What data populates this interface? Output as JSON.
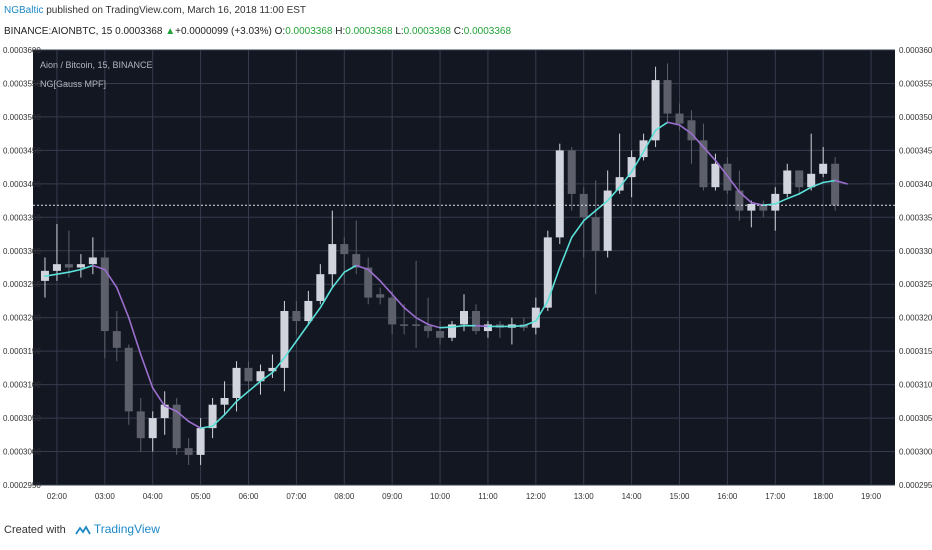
{
  "header": {
    "author": "NGBaltic",
    "published": " published on TradingView.com, March 16, 2018 11:00 EST",
    "symbol": "BINANCE:AIONBTC, 15",
    "last": "0.0003368",
    "change": "+0.0000099 (+3.03%)",
    "o_label": "O:",
    "o_value": "0.0003368",
    "h_label": "H:",
    "h_value": "0.0003368",
    "l_label": "L:",
    "l_value": "0.0003368",
    "c_label": "C:",
    "c_value": "0.0003368"
  },
  "legend": {
    "main": "Aion / Bitcoin, 15, BINANCE",
    "indicator": "NG[Gauss MPF]"
  },
  "footer": {
    "created_with": "Created with",
    "brand": "TradingView"
  },
  "colors": {
    "background": "#131722",
    "grid": "#363c4e",
    "axis_text": "#b2b5be",
    "bull_candle": "#d1d4dc",
    "bear_candle": "#5d606b",
    "ma_up": "#5ae0d8",
    "ma_down": "#9c6fcf",
    "current_price_line": "#e0e3eb"
  },
  "chart_data": {
    "type": "candlestick",
    "title": "Aion / Bitcoin, 15, BINANCE",
    "y_range": [
      0.000295,
      0.00036
    ],
    "y_ticks": [
      "0.0002950",
      "0.0003000",
      "0.0003050",
      "0.0003100",
      "0.0003150",
      "0.0003200",
      "0.0003250",
      "0.0003300",
      "0.0003350",
      "0.0003400",
      "0.0003450",
      "0.0003500",
      "0.0003550",
      "0.0003600"
    ],
    "x_ticks": [
      "02:00",
      "03:00",
      "04:00",
      "05:00",
      "06:00",
      "07:00",
      "08:00",
      "09:00",
      "10:00",
      "11:00",
      "12:00",
      "13:00",
      "14:00",
      "15:00",
      "16:00",
      "17:00",
      "18:00",
      "19:00"
    ],
    "current_price": 0.0003368,
    "candles": [
      {
        "t": 1.75,
        "o": 0.0003255,
        "h": 0.000329,
        "l": 0.000323,
        "c": 0.000327
      },
      {
        "t": 2.0,
        "o": 0.000327,
        "h": 0.000334,
        "l": 0.0003255,
        "c": 0.000328
      },
      {
        "t": 2.25,
        "o": 0.000328,
        "h": 0.000333,
        "l": 0.000326,
        "c": 0.0003275
      },
      {
        "t": 2.5,
        "o": 0.0003275,
        "h": 0.0003295,
        "l": 0.000326,
        "c": 0.000328
      },
      {
        "t": 2.75,
        "o": 0.000328,
        "h": 0.000332,
        "l": 0.0003265,
        "c": 0.000329
      },
      {
        "t": 3.0,
        "o": 0.000329,
        "h": 0.00033,
        "l": 0.000314,
        "c": 0.000318
      },
      {
        "t": 3.25,
        "o": 0.000318,
        "h": 0.000321,
        "l": 0.0003135,
        "c": 0.0003155
      },
      {
        "t": 3.5,
        "o": 0.0003155,
        "h": 0.000316,
        "l": 0.000304,
        "c": 0.000306
      },
      {
        "t": 3.75,
        "o": 0.000306,
        "h": 0.000308,
        "l": 0.0003,
        "c": 0.000302
      },
      {
        "t": 4.0,
        "o": 0.000302,
        "h": 0.000306,
        "l": 0.0003,
        "c": 0.000305
      },
      {
        "t": 4.25,
        "o": 0.000305,
        "h": 0.000309,
        "l": 0.0003025,
        "c": 0.000307
      },
      {
        "t": 4.5,
        "o": 0.000307,
        "h": 0.000308,
        "l": 0.0002995,
        "c": 0.0003005
      },
      {
        "t": 4.75,
        "o": 0.0003005,
        "h": 0.000302,
        "l": 0.000298,
        "c": 0.0002995
      },
      {
        "t": 5.0,
        "o": 0.0002995,
        "h": 0.000305,
        "l": 0.000298,
        "c": 0.0003035
      },
      {
        "t": 5.25,
        "o": 0.0003035,
        "h": 0.000308,
        "l": 0.000302,
        "c": 0.000307
      },
      {
        "t": 5.5,
        "o": 0.000307,
        "h": 0.0003105,
        "l": 0.0003055,
        "c": 0.000308
      },
      {
        "t": 5.75,
        "o": 0.000308,
        "h": 0.0003135,
        "l": 0.000306,
        "c": 0.0003125
      },
      {
        "t": 6.0,
        "o": 0.0003125,
        "h": 0.0003135,
        "l": 0.000309,
        "c": 0.0003105
      },
      {
        "t": 6.25,
        "o": 0.0003105,
        "h": 0.000313,
        "l": 0.0003085,
        "c": 0.000312
      },
      {
        "t": 6.5,
        "o": 0.000312,
        "h": 0.0003145,
        "l": 0.000311,
        "c": 0.0003125
      },
      {
        "t": 6.75,
        "o": 0.0003125,
        "h": 0.0003225,
        "l": 0.000309,
        "c": 0.000321
      },
      {
        "t": 7.0,
        "o": 0.000321,
        "h": 0.0003225,
        "l": 0.0003175,
        "c": 0.0003195
      },
      {
        "t": 7.25,
        "o": 0.0003195,
        "h": 0.000324,
        "l": 0.000319,
        "c": 0.0003225
      },
      {
        "t": 7.5,
        "o": 0.0003225,
        "h": 0.000328,
        "l": 0.000322,
        "c": 0.0003265
      },
      {
        "t": 7.75,
        "o": 0.0003265,
        "h": 0.000336,
        "l": 0.0003245,
        "c": 0.000331
      },
      {
        "t": 8.0,
        "o": 0.000331,
        "h": 0.000332,
        "l": 0.000325,
        "c": 0.0003295
      },
      {
        "t": 8.25,
        "o": 0.0003295,
        "h": 0.0003345,
        "l": 0.0003265,
        "c": 0.0003275
      },
      {
        "t": 8.5,
        "o": 0.0003275,
        "h": 0.000329,
        "l": 0.000322,
        "c": 0.000323
      },
      {
        "t": 8.75,
        "o": 0.0003235,
        "h": 0.0003245,
        "l": 0.000322,
        "c": 0.000323
      },
      {
        "t": 9.0,
        "o": 0.000323,
        "h": 0.000324,
        "l": 0.0003175,
        "c": 0.000319
      },
      {
        "t": 9.25,
        "o": 0.000319,
        "h": 0.000322,
        "l": 0.0003175,
        "c": 0.0003188
      },
      {
        "t": 9.5,
        "o": 0.000319,
        "h": 0.0003285,
        "l": 0.0003155,
        "c": 0.0003188
      },
      {
        "t": 9.75,
        "o": 0.0003188,
        "h": 0.000323,
        "l": 0.000317,
        "c": 0.000318
      },
      {
        "t": 10.0,
        "o": 0.000318,
        "h": 0.0003195,
        "l": 0.000316,
        "c": 0.000317
      },
      {
        "t": 10.25,
        "o": 0.000317,
        "h": 0.0003195,
        "l": 0.0003165,
        "c": 0.000319
      },
      {
        "t": 10.5,
        "o": 0.000319,
        "h": 0.0003235,
        "l": 0.000318,
        "c": 0.000321
      },
      {
        "t": 10.75,
        "o": 0.000321,
        "h": 0.000322,
        "l": 0.0003175,
        "c": 0.000318
      },
      {
        "t": 11.0,
        "o": 0.000318,
        "h": 0.0003195,
        "l": 0.000317,
        "c": 0.000319
      },
      {
        "t": 11.25,
        "o": 0.000319,
        "h": 0.0003195,
        "l": 0.000317,
        "c": 0.0003185
      },
      {
        "t": 11.5,
        "o": 0.0003185,
        "h": 0.00032,
        "l": 0.000316,
        "c": 0.000319
      },
      {
        "t": 11.75,
        "o": 0.000319,
        "h": 0.00032,
        "l": 0.000318,
        "c": 0.0003185
      },
      {
        "t": 12.0,
        "o": 0.0003185,
        "h": 0.000323,
        "l": 0.0003175,
        "c": 0.0003215
      },
      {
        "t": 12.25,
        "o": 0.0003215,
        "h": 0.000333,
        "l": 0.000321,
        "c": 0.000332
      },
      {
        "t": 12.5,
        "o": 0.000332,
        "h": 0.000346,
        "l": 0.000331,
        "c": 0.000345
      },
      {
        "t": 12.75,
        "o": 0.000345,
        "h": 0.0003455,
        "l": 0.000336,
        "c": 0.0003385
      },
      {
        "t": 13.0,
        "o": 0.0003385,
        "h": 0.0003395,
        "l": 0.000329,
        "c": 0.000335
      },
      {
        "t": 13.25,
        "o": 0.000335,
        "h": 0.0003405,
        "l": 0.0003235,
        "c": 0.00033
      },
      {
        "t": 13.5,
        "o": 0.00033,
        "h": 0.000342,
        "l": 0.000329,
        "c": 0.000339
      },
      {
        "t": 13.75,
        "o": 0.000339,
        "h": 0.0003475,
        "l": 0.0003385,
        "c": 0.000341
      },
      {
        "t": 14.0,
        "o": 0.000341,
        "h": 0.000345,
        "l": 0.000338,
        "c": 0.000344
      },
      {
        "t": 14.25,
        "o": 0.000344,
        "h": 0.0003475,
        "l": 0.0003435,
        "c": 0.0003465
      },
      {
        "t": 14.5,
        "o": 0.0003465,
        "h": 0.0003575,
        "l": 0.0003455,
        "c": 0.0003555
      },
      {
        "t": 14.75,
        "o": 0.0003555,
        "h": 0.000358,
        "l": 0.000349,
        "c": 0.0003505
      },
      {
        "t": 15.0,
        "o": 0.0003505,
        "h": 0.000352,
        "l": 0.000348,
        "c": 0.000349
      },
      {
        "t": 15.25,
        "o": 0.0003495,
        "h": 0.000351,
        "l": 0.000343,
        "c": 0.0003465
      },
      {
        "t": 15.5,
        "o": 0.0003465,
        "h": 0.000349,
        "l": 0.000339,
        "c": 0.0003395
      },
      {
        "t": 15.75,
        "o": 0.0003395,
        "h": 0.0003445,
        "l": 0.000339,
        "c": 0.000343
      },
      {
        "t": 16.0,
        "o": 0.000343,
        "h": 0.000344,
        "l": 0.0003385,
        "c": 0.000339
      },
      {
        "t": 16.25,
        "o": 0.000339,
        "h": 0.000342,
        "l": 0.0003345,
        "c": 0.000336
      },
      {
        "t": 16.5,
        "o": 0.000336,
        "h": 0.0003375,
        "l": 0.0003335,
        "c": 0.000337
      },
      {
        "t": 16.75,
        "o": 0.000337,
        "h": 0.0003375,
        "l": 0.000335,
        "c": 0.000336
      },
      {
        "t": 17.0,
        "o": 0.000336,
        "h": 0.0003395,
        "l": 0.000333,
        "c": 0.0003385
      },
      {
        "t": 17.25,
        "o": 0.0003385,
        "h": 0.000343,
        "l": 0.000338,
        "c": 0.000342
      },
      {
        "t": 17.5,
        "o": 0.000342,
        "h": 0.000342,
        "l": 0.0003385,
        "c": 0.0003395
      },
      {
        "t": 17.75,
        "o": 0.0003395,
        "h": 0.0003475,
        "l": 0.000339,
        "c": 0.0003415
      },
      {
        "t": 18.0,
        "o": 0.0003415,
        "h": 0.0003455,
        "l": 0.000341,
        "c": 0.000343
      },
      {
        "t": 18.25,
        "o": 0.000343,
        "h": 0.000344,
        "l": 0.000336,
        "c": 0.0003368
      }
    ],
    "ma_series": {
      "name": "NG[Gauss MPF]",
      "values": [
        [
          1.75,
          0.0003262
        ],
        [
          2.0,
          0.0003265
        ],
        [
          2.25,
          0.0003268
        ],
        [
          2.5,
          0.0003272
        ],
        [
          2.75,
          0.0003278
        ],
        [
          3.0,
          0.0003272
        ],
        [
          3.25,
          0.0003245
        ],
        [
          3.5,
          0.00032
        ],
        [
          3.75,
          0.0003145
        ],
        [
          4.0,
          0.0003095
        ],
        [
          4.25,
          0.0003068
        ],
        [
          4.5,
          0.000306
        ],
        [
          4.75,
          0.0003045
        ],
        [
          5.0,
          0.0003035
        ],
        [
          5.25,
          0.0003038
        ],
        [
          5.5,
          0.0003055
        ],
        [
          5.75,
          0.0003075
        ],
        [
          6.0,
          0.000309
        ],
        [
          6.25,
          0.0003105
        ],
        [
          6.5,
          0.0003118
        ],
        [
          6.75,
          0.000314
        ],
        [
          7.0,
          0.0003165
        ],
        [
          7.25,
          0.000319
        ],
        [
          7.5,
          0.0003215
        ],
        [
          7.75,
          0.0003245
        ],
        [
          8.0,
          0.0003268
        ],
        [
          8.25,
          0.0003278
        ],
        [
          8.5,
          0.0003272
        ],
        [
          8.75,
          0.0003255
        ],
        [
          9.0,
          0.0003235
        ],
        [
          9.25,
          0.0003215
        ],
        [
          9.5,
          0.00032
        ],
        [
          9.75,
          0.000319
        ],
        [
          10.0,
          0.0003185
        ],
        [
          10.25,
          0.0003186
        ],
        [
          10.5,
          0.0003188
        ],
        [
          10.75,
          0.0003188
        ],
        [
          11.0,
          0.0003187
        ],
        [
          11.25,
          0.0003187
        ],
        [
          11.5,
          0.0003187
        ],
        [
          11.75,
          0.0003188
        ],
        [
          12.0,
          0.0003195
        ],
        [
          12.25,
          0.0003225
        ],
        [
          12.5,
          0.0003275
        ],
        [
          12.75,
          0.000332
        ],
        [
          13.0,
          0.0003345
        ],
        [
          13.25,
          0.000336
        ],
        [
          13.5,
          0.0003375
        ],
        [
          13.75,
          0.0003395
        ],
        [
          14.0,
          0.0003418
        ],
        [
          14.25,
          0.0003448
        ],
        [
          14.5,
          0.000348
        ],
        [
          14.75,
          0.0003492
        ],
        [
          15.0,
          0.0003488
        ],
        [
          15.25,
          0.0003475
        ],
        [
          15.5,
          0.0003455
        ],
        [
          15.75,
          0.0003435
        ],
        [
          16.0,
          0.0003412
        ],
        [
          16.25,
          0.0003388
        ],
        [
          16.5,
          0.0003372
        ],
        [
          16.75,
          0.0003368
        ],
        [
          17.0,
          0.000337
        ],
        [
          17.25,
          0.0003378
        ],
        [
          17.5,
          0.0003385
        ],
        [
          17.75,
          0.0003395
        ],
        [
          18.0,
          0.0003402
        ],
        [
          18.25,
          0.0003405
        ],
        [
          18.5,
          0.00034
        ]
      ]
    }
  }
}
